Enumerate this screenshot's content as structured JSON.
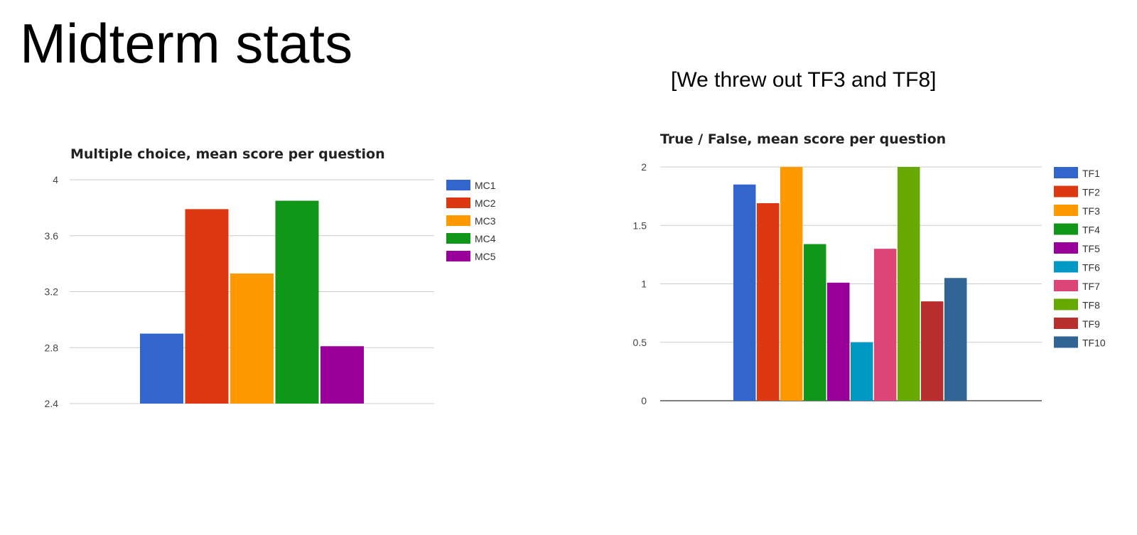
{
  "slide": {
    "title": "Midterm stats",
    "note": "[We threw out TF3 and TF8]"
  },
  "chart_data": [
    {
      "id": "mc",
      "type": "bar",
      "title": "Multiple choice, mean score per question",
      "xlabel": "",
      "ylabel": "",
      "ylim": [
        2.4,
        4
      ],
      "yticks": [
        2.4,
        2.8,
        3.2,
        3.6,
        4
      ],
      "ytick_labels": [
        "2.4",
        "2.8",
        "3.2",
        "3.6",
        "4"
      ],
      "grid": true,
      "legend_position": "right",
      "series": [
        {
          "name": "MC1",
          "value": 2.9,
          "color": "#3366cc"
        },
        {
          "name": "MC2",
          "value": 3.79,
          "color": "#dc3912"
        },
        {
          "name": "MC3",
          "value": 3.33,
          "color": "#ff9900"
        },
        {
          "name": "MC4",
          "value": 3.85,
          "color": "#109618"
        },
        {
          "name": "MC5",
          "value": 2.81,
          "color": "#990099"
        }
      ]
    },
    {
      "id": "tf",
      "type": "bar",
      "title": "True / False, mean score per question",
      "xlabel": "",
      "ylabel": "",
      "ylim": [
        0,
        2
      ],
      "yticks": [
        0,
        0.5,
        1,
        1.5,
        2
      ],
      "ytick_labels": [
        "0",
        "0.5",
        "1",
        "1.5",
        "2"
      ],
      "grid": true,
      "legend_position": "right",
      "series": [
        {
          "name": "TF1",
          "value": 1.85,
          "color": "#3366cc"
        },
        {
          "name": "TF2",
          "value": 1.69,
          "color": "#dc3912"
        },
        {
          "name": "TF3",
          "value": 2.0,
          "color": "#ff9900"
        },
        {
          "name": "TF4",
          "value": 1.34,
          "color": "#109618"
        },
        {
          "name": "TF5",
          "value": 1.01,
          "color": "#990099"
        },
        {
          "name": "TF6",
          "value": 0.5,
          "color": "#0099c6"
        },
        {
          "name": "TF7",
          "value": 1.3,
          "color": "#dd4477"
        },
        {
          "name": "TF8",
          "value": 2.0,
          "color": "#66aa00"
        },
        {
          "name": "TF9",
          "value": 0.85,
          "color": "#b82e2e"
        },
        {
          "name": "TF10",
          "value": 1.05,
          "color": "#316395"
        }
      ]
    }
  ]
}
